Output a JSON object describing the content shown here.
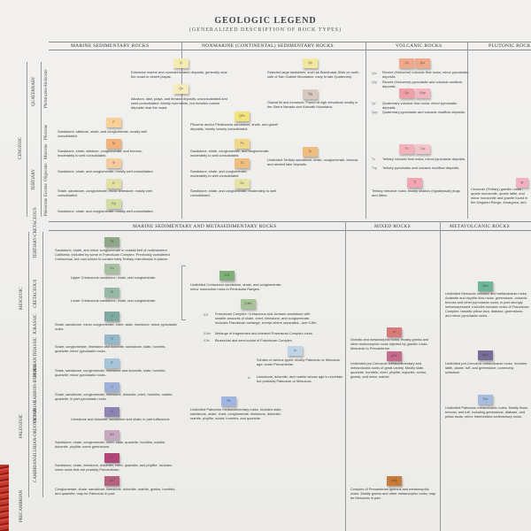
{
  "title": "GEOLOGIC LEGEND",
  "subtitle": "(GENERALIZED DESCRIPTION OF ROCK TYPES)",
  "top_headers": [
    "MARINE SEDIMENTARY ROCKS",
    "NONMARINE (CONTINENTAL) SEDIMENTARY ROCKS",
    "VOLCANIC ROCKS",
    "PLUTONIC ROCK"
  ],
  "mid_headers": [
    "MARINE SEDIMENTARY AND METASEDIMENTARY ROCKS",
    "MIXED ROCKS",
    "METAVOLCANIC ROCKS"
  ],
  "eras": [
    "CENOZOIC",
    "MESOZOIC",
    "PALEOZOIC",
    "PRECAMBRIAN"
  ],
  "periods_top": [
    "QUATERNARY",
    "TERTIARY"
  ],
  "periods_lower": [
    "TERTIARY-CRETACEOUS",
    "CRETACEOUS",
    "JURASSIC",
    "TRIASSIC",
    "PERMIAN",
    "CARBON-IFEROUS",
    "DEVONIAN",
    "SILURIAN-ORDOVICIAN",
    "CAMBRIAN"
  ],
  "epochs": [
    "Pleistocene-Holocene",
    "Pliocene",
    "Miocene",
    "Oligocene",
    "Eocene",
    "Paleocene"
  ],
  "marine_top": [
    {
      "label": "Q",
      "color": "#f2ebb2",
      "text": "Extensive marine and nonmarine sand deposits, generally near the coast or desert playas."
    },
    {
      "label": "Qs",
      "color": "#f4edbb",
      "text": "Alluvium, lake, playa, and terrace deposits; unconsolidated and semi-consolidated. Mostly nonmarine, but includes marine deposits near the coast."
    },
    {
      "label": "P",
      "color": "#f7d09a",
      "text": "Sandstone, siltstone, shale, and conglomerate; mostly well consolidated."
    },
    {
      "label": "M",
      "color": "#f3b27a",
      "text": "Sandstone, shale, siltstone, conglomerate, and breccia; moderately to well consolidated."
    },
    {
      "label": "Φ",
      "color": "#f6cba0",
      "text": "Sandstone, shale, and conglomerate; mostly well consolidated."
    },
    {
      "label": "E",
      "color": "#e3e0a6",
      "text": "Shale, sandstone, conglomerate, minor limestone; mostly well consolidated."
    },
    {
      "label": "Ep",
      "color": "#d4dca4",
      "text": "Sandstone, shale, and conglomerate; mostly well consolidated."
    }
  ],
  "nonmarine_top": [
    {
      "label": "Qs",
      "color": "#f3e7a0",
      "text": "Selected large landslides, such as Blackhawk Slide on north side of San Gabriel Mountains; early to late Quaternary."
    },
    {
      "label": "Qg",
      "color": "#d7c8c0",
      "text": "Glacial till and moraines. Found at high elevations mostly in the Sierra Nevada and Klamath Mountains."
    },
    {
      "label": "QPc",
      "color": "#f2e37b",
      "text": "Pliocene and/or Pleistocene sandstone, shale, and gravel deposits; mostly loosely consolidated."
    },
    {
      "label": "Pc",
      "color": "#f0d88a",
      "text": "Sandstone, shale, conglomerate, and fanglomerate; moderately to well consolidated."
    },
    {
      "label": "Tc",
      "color": "#f0bd80",
      "text": "Undivided Tertiary sandstone, shale, conglomerate, breccia, and ancient lake deposits."
    },
    {
      "label": "Ec",
      "color": "#e6e4a8",
      "text": "Sandstone, shale, and conglomerate; moderately to well consolidated."
    }
  ],
  "volcanic_top": [
    {
      "label": "Qv",
      "color": "#f0a98a",
      "sym": "Qrv",
      "text": "Recent (Holocene) volcanic flow rocks; minor pyroclastic deposits."
    },
    {
      "label": "Qv",
      "color": "#f4c2b8",
      "sym": "Qrp",
      "text": "Recent (Holocene) pyroclastic and volcanic mudflow deposits."
    },
    {
      "label": "Qv",
      "color": "#f09ea8",
      "sym": "Qv",
      "text": "Quaternary volcanic flow rocks; minor pyroclastic deposits."
    },
    {
      "label": "Qvp",
      "color": "#f2b6c0",
      "sym": "Qvp",
      "text": "Quaternary pyroclastic and volcanic mudflow deposits."
    },
    {
      "label": "Tv",
      "color": "#f3b2ba",
      "sym": "Tv",
      "text": "Tertiary volcanic flow rocks; minor pyroclastic deposits."
    },
    {
      "label": "Tvp",
      "color": "#f4c6cc",
      "sym": "Tvp",
      "text": "Tertiary pyroclastic and volcanic mudflow deposits."
    },
    {
      "label": "Ti",
      "color": "#f2a6b4",
      "text": "Tertiary intrusive rocks; mostly shallow (hypabyssal) plugs and dikes."
    }
  ],
  "plutonic_top": [
    {
      "label": "gr",
      "color": "#f2b0c0",
      "text": "Cenozoic (Tertiary) granitic rocks - quartz monzonite, quartz latite, and minor monzonite and granite found in the Kingston Range, Amargosa, and Greenwater Ranges, and in the California."
    }
  ],
  "marine_lower": [
    {
      "label": "TK",
      "color": "#8fa88a",
      "text": "Sandstone, shale, and minor conglomerate in coastal belt of northwestern California; included by some in Franciscan Complex. Previously considered Cretaceous, but now known to contain early Tertiary microfossils in places."
    },
    {
      "label": "Ku",
      "color": "#a6c0a0",
      "text": "Upper Cretaceous sandstone, shale, and conglomerate."
    },
    {
      "label": "Kl",
      "color": "#98b8a6",
      "text": "Lower Cretaceous sandstone, shale, and conglomerate."
    },
    {
      "label": "J",
      "color": "#7fa8a0",
      "text": "Shale, sandstone, minor conglomerate, chert, slate, limestone; minor pyroclastic rocks."
    },
    {
      "label": "Tr",
      "color": "#93b8c8",
      "text": "Shale, conglomerate, limestone and dolomite, sandstone, slate, hornfels, quartzite; minor pyroclastic rocks."
    },
    {
      "label": "P",
      "color": "#a8c4d8",
      "text": "Shale, sandstone, conglomerate, limestone and dolomite, slate, hornfels, quartzite; minor pyroclastic rocks."
    },
    {
      "label": "C",
      "color": "#9fb0d8",
      "text": "Shale, sandstone, conglomerate, limestone, dolomite, chert, hornfels, marble, quartzite; in part pyroclastic rocks."
    },
    {
      "label": "D",
      "color": "#8d84b4",
      "text": "Limestone and dolomite, sandstone and shale; in part tuffaceous."
    },
    {
      "label": "SO",
      "color": "#c8a8c0",
      "text": "Sandstone, shale, conglomerate, chert, slate, quartzite, hornfels, marble, dolomite, phyllite; some greenstone."
    },
    {
      "label": "Є",
      "color": "#b2477a",
      "text": "Sandstone, shale, limestone, dolomite, chert, quartzite, and phyllite. Includes some rocks that are possibly Precambrian."
    },
    {
      "label": "pЄ",
      "color": "#b4627e",
      "text": "Conglomerate, shale, sandstone, limestone, dolomite, marble, gneiss, hornfels, and quartzite; may be Paleozoic in part."
    }
  ],
  "middle_lower": [
    {
      "label": "KJf",
      "color": "#7fb07a",
      "text": "Undivided Cretaceous sandstone, shale, and conglomerate; minor nonmarine rocks in Peninsular Ranges."
    },
    {
      "label": "KJfm",
      "color": "#a8c29a",
      "sym": "KJf",
      "text": "Franciscan Complex: Cretaceous and Jurassic sandstone with smaller amounts of shale, chert, limestone, and conglomerate. Includes Franciscan melange, except where separated—see KJfm."
    },
    {
      "label": "",
      "color": "",
      "sym": "KJfm",
      "text": "Melange of fragmented and sheared Franciscan Complex rocks."
    },
    {
      "label": "",
      "color": "",
      "sym": "KJfs",
      "text": "Blueschist and semi-schist of Franciscan Complex."
    },
    {
      "label": "ls",
      "color": "#bfd5e6",
      "text": "Schists of various types; mostly Paleozoic or Mesozoic age; some Precambrian."
    },
    {
      "label": "",
      "color": "",
      "sym": "ls",
      "text": "Limestone, dolomite, and marble whose age is uncertain but probably Paleozoic or Mesozoic."
    },
    {
      "label": "Pz",
      "color": "#9fb4e0",
      "text": "Undivided Paleozoic metasedimentary rocks. Includes slate, sandstone, shale, chert, conglomerate, limestone, dolomite, marble, phyllite, schist, hornfels, and quartzite."
    }
  ],
  "mixed_lower": [
    {
      "label": "m",
      "color": "#d67a7a",
      "text": "Granitic and metamorphic rocks, mostly gneiss and other metamorphic rocks injected by granitic rocks. Mesozoic to Precambrian."
    },
    {
      "label": "pЄc",
      "color": "#c56b8c",
      "text": "Undivided pre-Cenozoic metasedimentary and metavolcanic rocks of great variety. Mostly slate, quartzite, hornfels, chert, phyllite, mylonite, schist, gneiss, and minor marble."
    },
    {
      "label": "pЄg",
      "color": "#c97c3a",
      "text": "Complex of Precambrian igneous and metamorphic rocks. Mostly gneiss and other metamorphic rocks; may be Mesozoic in part."
    }
  ],
  "metavolcanic_lower": [
    {
      "label": "Mzv",
      "color": "#6fb79a",
      "text": "Undivided Mesozoic volcanic and metavolcanic rocks. Andesite and rhyolite flow rocks, greenstone, volcanic breccia and other pyroclastic rocks; in part strongly metamorphosed. Includes volcanic rocks of Franciscan Complex: basaltic pillow lava, diabase, greenstone, and minor pyroclastic rocks."
    },
    {
      "label": "pЄv",
      "color": "#7a6c98",
      "text": "Undivided pre-Cenozoic metavolcanic rocks. Includes latite, dacite, tuff, and greenstone; commonly schistose."
    },
    {
      "label": "Pzv",
      "color": "#a6bde0",
      "text": "Undivided Paleozoic metavolcanic rocks. Mostly flows, breccia, and tuff, including greenstone, diabase, and pillow lavas; minor interbedded sedimentary rocks."
    }
  ]
}
